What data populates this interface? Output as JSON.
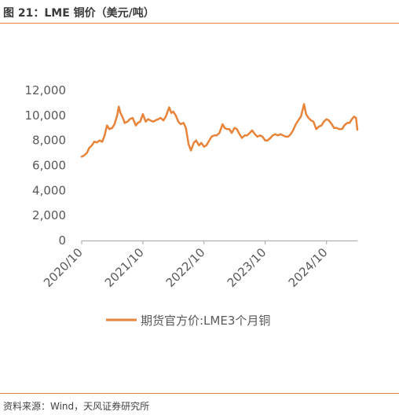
{
  "header": {
    "title": "图 21：LME 铜价（美元/吨）"
  },
  "footer": {
    "source": "资料来源：Wind，天风证券研究所"
  },
  "colors": {
    "series": "#E8833A",
    "rule": "#E8833A",
    "axis": "#A6A6A6",
    "text": "#595959"
  },
  "chart_data": {
    "type": "line",
    "title": "",
    "xlabel": "",
    "ylabel": "",
    "ylim": [
      0,
      12000
    ],
    "yticks": [
      0,
      2000,
      4000,
      6000,
      8000,
      10000,
      12000
    ],
    "ytick_labels": [
      "0",
      "2,000",
      "4,000",
      "6,000",
      "8,000",
      "10,000",
      "12,000"
    ],
    "xticks": [
      "2020/10",
      "2021/10",
      "2022/10",
      "2023/10",
      "2024/10"
    ],
    "grid": false,
    "legend_position": "bottom",
    "series": [
      {
        "name": "期货官方价:LME3个月铜",
        "x": [
          "2020-10-01",
          "2020-10-15",
          "2020-11-01",
          "2020-11-15",
          "2020-12-01",
          "2020-12-15",
          "2021-01-01",
          "2021-01-15",
          "2021-02-01",
          "2021-02-15",
          "2021-03-01",
          "2021-03-15",
          "2021-04-01",
          "2021-04-15",
          "2021-05-01",
          "2021-05-10",
          "2021-05-20",
          "2021-06-01",
          "2021-06-15",
          "2021-07-01",
          "2021-07-15",
          "2021-08-01",
          "2021-08-20",
          "2021-09-01",
          "2021-09-15",
          "2021-10-01",
          "2021-10-18",
          "2021-11-01",
          "2021-11-15",
          "2021-12-01",
          "2021-12-15",
          "2022-01-01",
          "2022-01-15",
          "2022-02-01",
          "2022-02-15",
          "2022-03-07",
          "2022-03-20",
          "2022-04-01",
          "2022-04-15",
          "2022-05-01",
          "2022-05-15",
          "2022-06-01",
          "2022-06-15",
          "2022-07-01",
          "2022-07-15",
          "2022-08-01",
          "2022-08-15",
          "2022-09-01",
          "2022-09-15",
          "2022-10-01",
          "2022-10-15",
          "2022-11-01",
          "2022-11-15",
          "2022-12-01",
          "2022-12-15",
          "2023-01-01",
          "2023-01-20",
          "2023-02-01",
          "2023-02-15",
          "2023-03-01",
          "2023-03-15",
          "2023-04-01",
          "2023-04-15",
          "2023-05-01",
          "2023-05-15",
          "2023-06-01",
          "2023-06-15",
          "2023-07-01",
          "2023-07-15",
          "2023-08-01",
          "2023-08-15",
          "2023-09-01",
          "2023-09-15",
          "2023-10-01",
          "2023-10-15",
          "2023-11-01",
          "2023-11-15",
          "2023-12-01",
          "2023-12-15",
          "2024-01-01",
          "2024-01-15",
          "2024-02-01",
          "2024-02-15",
          "2024-03-01",
          "2024-03-15",
          "2024-04-01",
          "2024-04-15",
          "2024-05-01",
          "2024-05-20",
          "2024-06-01",
          "2024-06-15",
          "2024-07-01",
          "2024-07-15",
          "2024-08-01",
          "2024-08-15",
          "2024-09-01",
          "2024-09-15",
          "2024-10-01",
          "2024-10-15",
          "2024-11-01",
          "2024-11-15",
          "2024-12-01",
          "2024-12-15",
          "2025-01-01",
          "2025-01-15",
          "2025-02-01",
          "2025-02-15",
          "2025-03-01",
          "2025-03-15",
          "2025-03-26",
          "2025-04-03"
        ],
        "y": [
          6700,
          6800,
          7000,
          7400,
          7600,
          7900,
          7850,
          8000,
          7900,
          8400,
          9200,
          8900,
          9000,
          9300,
          10000,
          10700,
          10200,
          9900,
          9400,
          9500,
          9700,
          9800,
          9200,
          9400,
          9500,
          10100,
          9500,
          9700,
          9600,
          9500,
          9600,
          9700,
          9800,
          9600,
          9900,
          10650,
          10200,
          10300,
          10000,
          9500,
          9300,
          9400,
          9000,
          7700,
          7200,
          7800,
          8000,
          7600,
          7800,
          7500,
          7600,
          8000,
          8300,
          8400,
          8400,
          8600,
          9300,
          9000,
          8900,
          8900,
          8600,
          9000,
          8900,
          8500,
          8200,
          8400,
          8400,
          8600,
          8800,
          8500,
          8300,
          8400,
          8300,
          8000,
          8000,
          8200,
          8400,
          8500,
          8400,
          8500,
          8400,
          8300,
          8300,
          8500,
          8800,
          9300,
          9600,
          9900,
          10900,
          10100,
          9800,
          9600,
          9500,
          8900,
          9100,
          9200,
          9500,
          9700,
          9600,
          9300,
          9000,
          9000,
          8900,
          8900,
          9200,
          9400,
          9400,
          9700,
          9900,
          9800,
          8850
        ]
      }
    ]
  }
}
